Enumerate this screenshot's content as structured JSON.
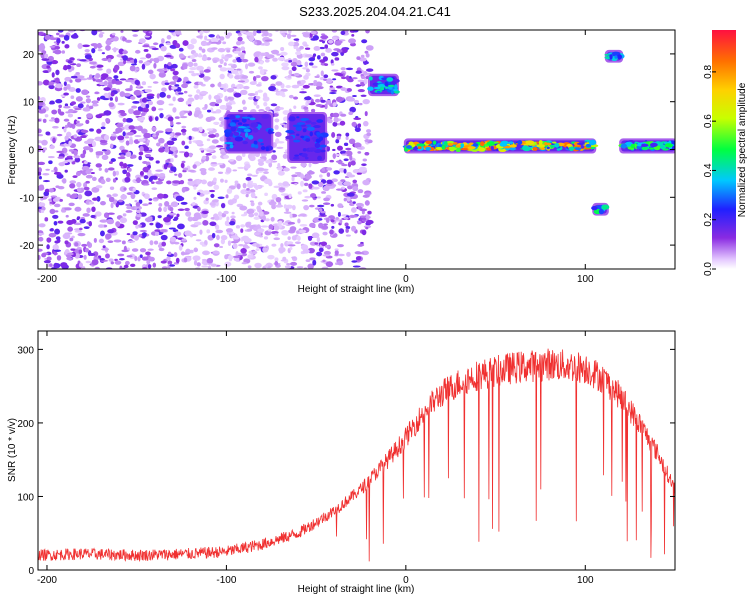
{
  "title": "S233.2025.204.04.21.C41",
  "chart_data": [
    {
      "type": "heatmap",
      "xlabel": "Height of straight line (km)",
      "ylabel": "Frequency (Hz)",
      "xlim": [
        -205,
        150
      ],
      "ylim": [
        -25,
        25
      ],
      "xticks": [
        -200,
        -100,
        0,
        100
      ],
      "yticks": [
        -20,
        -10,
        0,
        10,
        20
      ],
      "grid": false,
      "colorbar": {
        "label": "Normalized spectral amplitude",
        "range": [
          0,
          0.97
        ],
        "ticks": [
          0.0,
          0.2,
          0.4,
          0.6,
          0.8
        ]
      },
      "features": [
        {
          "x": [
            -205,
            -20
          ],
          "y": [
            -25,
            25
          ],
          "amplitude": 0.12
        },
        {
          "x": [
            -100,
            -75
          ],
          "y": [
            0,
            7
          ],
          "amplitude": 0.35
        },
        {
          "x": [
            -65,
            -45
          ],
          "y": [
            -2,
            7
          ],
          "amplitude": 0.3
        },
        {
          "x": [
            -20,
            -5
          ],
          "y": [
            12,
            15
          ],
          "amplitude": 0.45
        },
        {
          "x": [
            0,
            105
          ],
          "y": [
            0,
            1.5
          ],
          "amplitude": 0.9
        },
        {
          "x": [
            105,
            112
          ],
          "y": [
            -13,
            -12
          ],
          "amplitude": 0.5
        },
        {
          "x": [
            112,
            120
          ],
          "y": [
            19,
            20
          ],
          "amplitude": 0.5
        },
        {
          "x": [
            120,
            150
          ],
          "y": [
            0,
            1.5
          ],
          "amplitude": 0.55
        }
      ]
    },
    {
      "type": "line",
      "xlabel": "Height of straight line (km)",
      "ylabel": "SNR (10 * v/v)",
      "xlim": [
        -205,
        150
      ],
      "ylim": [
        0,
        325
      ],
      "xticks": [
        -200,
        -100,
        0,
        100
      ],
      "yticks": [
        0,
        100,
        200,
        300
      ],
      "grid": false,
      "color": "#f03030",
      "series": [
        {
          "x": [
            -205,
            -180,
            -150,
            -120,
            -100,
            -80,
            -60,
            -40,
            -25,
            -10,
            0,
            10,
            20,
            30,
            40,
            60,
            80,
            100,
            110,
            120,
            130,
            140,
            150
          ],
          "values": [
            20,
            22,
            20,
            22,
            25,
            35,
            50,
            80,
            110,
            150,
            180,
            215,
            240,
            255,
            265,
            275,
            280,
            275,
            260,
            235,
            200,
            160,
            110
          ]
        }
      ]
    }
  ]
}
